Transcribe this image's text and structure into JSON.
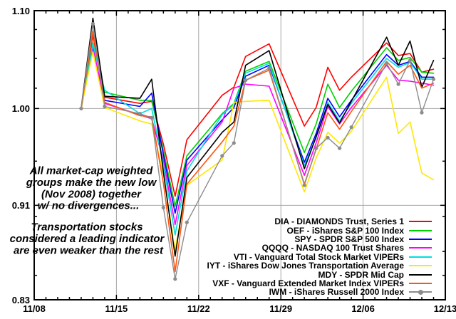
{
  "chart_data": {
    "type": "line",
    "title": "",
    "xlabel": "",
    "ylabel": "",
    "y_axis": {
      "scale": "log",
      "min": 0.83,
      "max": 1.1,
      "ticks": [
        {
          "label": "1.10",
          "value": 1.1
        },
        {
          "label": "1.00",
          "value": 1.0
        },
        {
          "label": "0.91",
          "value": 0.91
        },
        {
          "label": "0.83",
          "value": 0.83
        }
      ],
      "minor_tick_values": [
        0.85,
        0.87,
        0.9,
        0.95,
        1.02,
        1.05,
        1.08
      ],
      "gridline_values": [
        1.0,
        0.91
      ]
    },
    "x_axis": {
      "start_date": "11/08",
      "end_date": "12/13",
      "span_days": 35,
      "ticks": [
        {
          "label": "11/08",
          "day": 0
        },
        {
          "label": "11/15",
          "day": 7
        },
        {
          "label": "11/22",
          "day": 14
        },
        {
          "label": "11/29",
          "day": 21
        },
        {
          "label": "12/06",
          "day": 28
        },
        {
          "label": "12/13",
          "day": 35
        }
      ],
      "gridline_days": [
        7,
        14,
        21,
        28
      ],
      "minor_tick_every_days": 1
    },
    "grid": true,
    "legend_position": "bottom-right",
    "dates": [
      "11/12",
      "11/13",
      "11/14",
      "11/17",
      "11/18",
      "11/19",
      "11/20",
      "11/21",
      "11/24",
      "11/25",
      "11/26",
      "11/28",
      "12/01",
      "12/02",
      "12/03",
      "12/04",
      "12/05",
      "12/08",
      "12/09",
      "12/10",
      "12/11",
      "12/12"
    ],
    "series": [
      {
        "name": "DIA - DIAMONDS Trust, Series 1",
        "color": "#ff0000",
        "marker": false,
        "values": [
          1.0,
          1.074,
          1.011,
          1.005,
          1.007,
          0.966,
          0.918,
          0.97,
          1.013,
          1.021,
          1.052,
          1.065,
          0.983,
          1.001,
          1.041,
          1.018,
          1.031,
          1.066,
          1.053,
          1.055,
          1.036,
          1.039
        ]
      },
      {
        "name": "OEF - iShares S&P 100 Index",
        "color": "#00d000",
        "marker": false,
        "values": [
          1.0,
          1.066,
          1.016,
          1.008,
          1.008,
          0.96,
          0.909,
          0.955,
          0.995,
          1.005,
          1.037,
          1.047,
          0.958,
          0.985,
          1.024,
          1.001,
          1.017,
          1.061,
          1.048,
          1.051,
          1.036,
          1.035
        ]
      },
      {
        "name": "SPY - SPDR S&P 500 Index",
        "color": "#0000ff",
        "marker": false,
        "values": [
          1.0,
          1.06,
          1.008,
          1.002,
          1.015,
          0.956,
          0.903,
          0.951,
          0.989,
          1.001,
          1.032,
          1.043,
          0.949,
          0.976,
          1.01,
          0.992,
          1.008,
          1.054,
          1.043,
          1.047,
          1.031,
          1.031
        ]
      },
      {
        "name": "QQQQ - NASDAQ 100 Trust Shares",
        "color": "#ff00ff",
        "marker": false,
        "values": [
          1.0,
          1.062,
          1.005,
          0.994,
          0.99,
          0.951,
          0.893,
          0.946,
          0.987,
          1.02,
          1.024,
          1.022,
          0.937,
          0.967,
          1.002,
          0.985,
          1.001,
          1.043,
          1.028,
          1.027,
          1.025,
          1.023
        ]
      },
      {
        "name": "VTI - Vanguard Total Stock Market VIPERs",
        "color": "#00dede",
        "marker": false,
        "values": [
          1.0,
          1.065,
          1.018,
          0.995,
          1.0,
          0.947,
          0.884,
          0.941,
          0.994,
          1.004,
          1.035,
          1.045,
          0.946,
          0.972,
          1.006,
          0.988,
          1.005,
          1.05,
          1.041,
          1.046,
          1.029,
          1.029
        ]
      },
      {
        "name": "IYT - iShares Dow Jones Transportation Average",
        "color": "#ffe800",
        "marker": false,
        "values": [
          1.0,
          1.057,
          1.001,
          0.988,
          0.985,
          0.938,
          0.871,
          0.928,
          0.951,
          1.006,
          1.007,
          1.008,
          0.922,
          0.953,
          0.977,
          0.967,
          0.978,
          1.031,
          0.976,
          0.987,
          0.939,
          0.933
        ]
      },
      {
        "name": "MDY - SPDR Mid Cap",
        "color": "#000000",
        "marker": false,
        "values": [
          1.0,
          1.092,
          1.012,
          1.01,
          1.029,
          0.94,
          0.866,
          0.935,
          0.977,
          0.987,
          1.043,
          1.058,
          0.943,
          0.973,
          1.004,
          0.986,
          1.007,
          1.072,
          1.043,
          1.068,
          1.021,
          1.048
        ]
      },
      {
        "name": "VXF - Vanguard Extended Market Index VIPERs",
        "color": "#ff5511",
        "marker": false,
        "values": [
          1.0,
          1.078,
          1.006,
          0.993,
          0.992,
          0.93,
          0.853,
          0.929,
          0.968,
          0.983,
          1.028,
          1.038,
          0.929,
          0.961,
          0.996,
          0.98,
          0.997,
          1.047,
          1.034,
          1.043,
          1.02,
          1.025
        ]
      },
      {
        "name": "IWM - iShares Russell 2000 Index",
        "color": "#8c8c8c",
        "marker": true,
        "values": [
          1.0,
          1.086,
          1.002,
          0.995,
          0.991,
          0.908,
          0.847,
          0.895,
          0.955,
          0.967,
          1.028,
          1.04,
          0.928,
          0.962,
          0.972,
          0.962,
          0.982,
          1.045,
          1.024,
          1.048,
          0.996,
          1.029
        ]
      }
    ],
    "annotations": [
      {
        "lines": [
          "All market-cap weighted",
          "groups make the new low",
          "(Nov 2008) together",
          "w/ no divergences..."
        ]
      },
      {
        "lines": [
          "Transportation stocks",
          "considered a leading indicator",
          "are even weaker than the rest"
        ]
      }
    ]
  }
}
